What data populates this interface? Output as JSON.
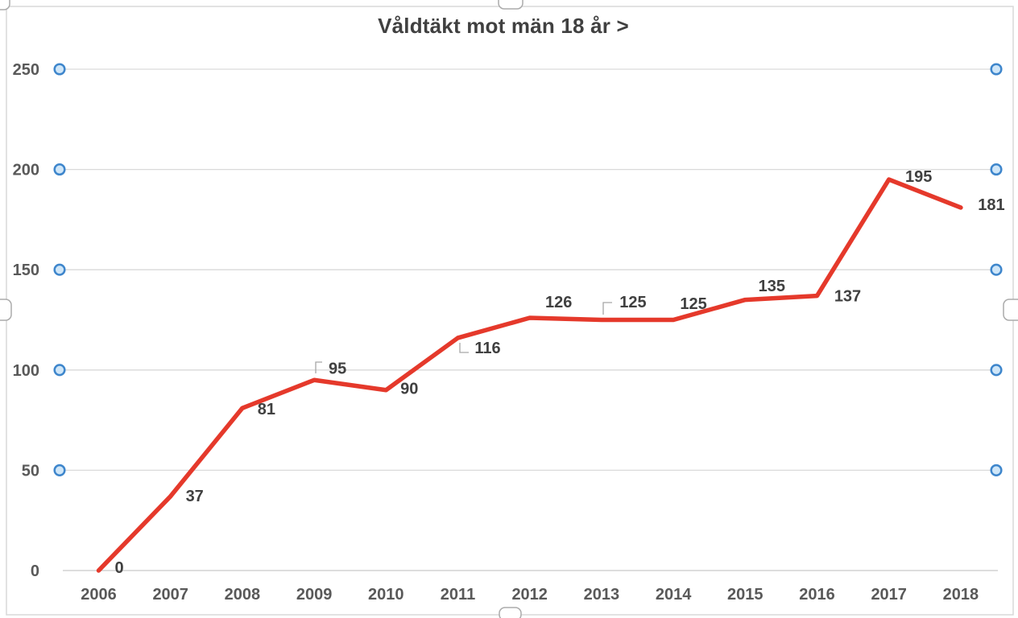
{
  "chart_data": {
    "type": "line",
    "title": "Våldtäkt mot män 18 år >",
    "categories": [
      "2006",
      "2007",
      "2008",
      "2009",
      "2010",
      "2011",
      "2012",
      "2013",
      "2014",
      "2015",
      "2016",
      "2017",
      "2018"
    ],
    "series": [
      {
        "name": "Våldtäkt mot män 18 år >",
        "values": [
          0,
          37,
          81,
          95,
          90,
          116,
          126,
          125,
          125,
          135,
          137,
          195,
          181
        ]
      }
    ],
    "data_labels": [
      "0",
      "37",
      "81",
      "95",
      "90",
      "116",
      "126",
      "125",
      "125",
      "135",
      "137",
      "195",
      "181"
    ],
    "xlabel": "",
    "ylabel": "",
    "ylim": [
      0,
      250
    ],
    "yticks": [
      0,
      50,
      100,
      150,
      200,
      250
    ],
    "grid": true,
    "legend_position": "none",
    "labels_with_leader_lines": [
      "95",
      "116",
      "125 (year 2013)"
    ]
  },
  "selection_state": {
    "chart_selected": true,
    "gridlines_selected": true
  },
  "colors": {
    "series_line": "#e5392b",
    "data_label_text": "#404040",
    "axis_text": "#595959",
    "gridline": "#d9d9d9",
    "axis_line": "#d2d2d2",
    "chart_border": "#d9d9d9",
    "leader_line": "#a6a6a6",
    "selection_handle_border": "#ababab",
    "selection_handle_fill": "#ffffff",
    "gridline_handle_ring": "#3e86cc",
    "gridline_handle_fill": "#cfe6f8",
    "background": "#ffffff"
  }
}
